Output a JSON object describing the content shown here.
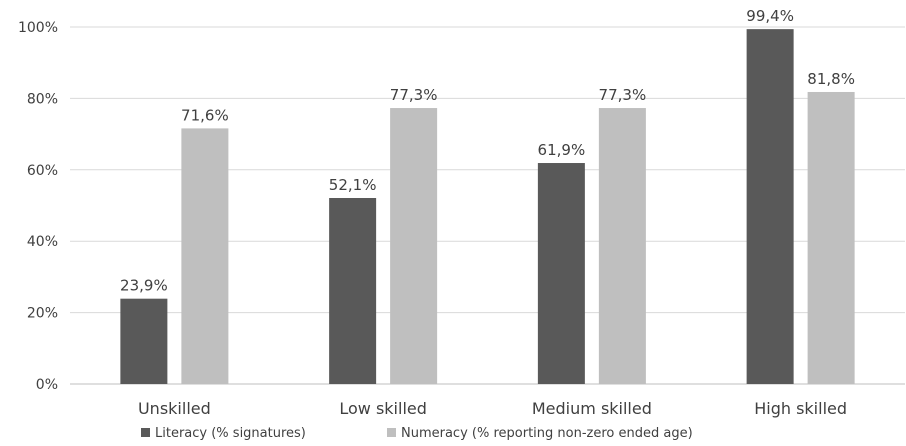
{
  "chart_data": {
    "type": "bar",
    "categories": [
      "Unskilled",
      "Low skilled",
      "Medium skilled",
      "High skilled"
    ],
    "series": [
      {
        "name": "Literacy (% signatures)",
        "values": [
          23.9,
          52.1,
          61.9,
          99.4
        ],
        "labels": [
          "23,9%",
          "52,1%",
          "61,9%",
          "99,4%"
        ],
        "color": "#595959"
      },
      {
        "name": "Numeracy (% reporting non-zero ended age)",
        "values": [
          71.6,
          77.3,
          77.3,
          81.8
        ],
        "labels": [
          "71,6%",
          "77,3%",
          "77,3%",
          "81,8%"
        ],
        "color": "#bfbfbf"
      }
    ],
    "yticks": [
      "0%",
      "20%",
      "40%",
      "60%",
      "80%",
      "100%"
    ],
    "ylim": [
      0,
      100
    ],
    "grid": true,
    "legend_position": "bottom"
  }
}
